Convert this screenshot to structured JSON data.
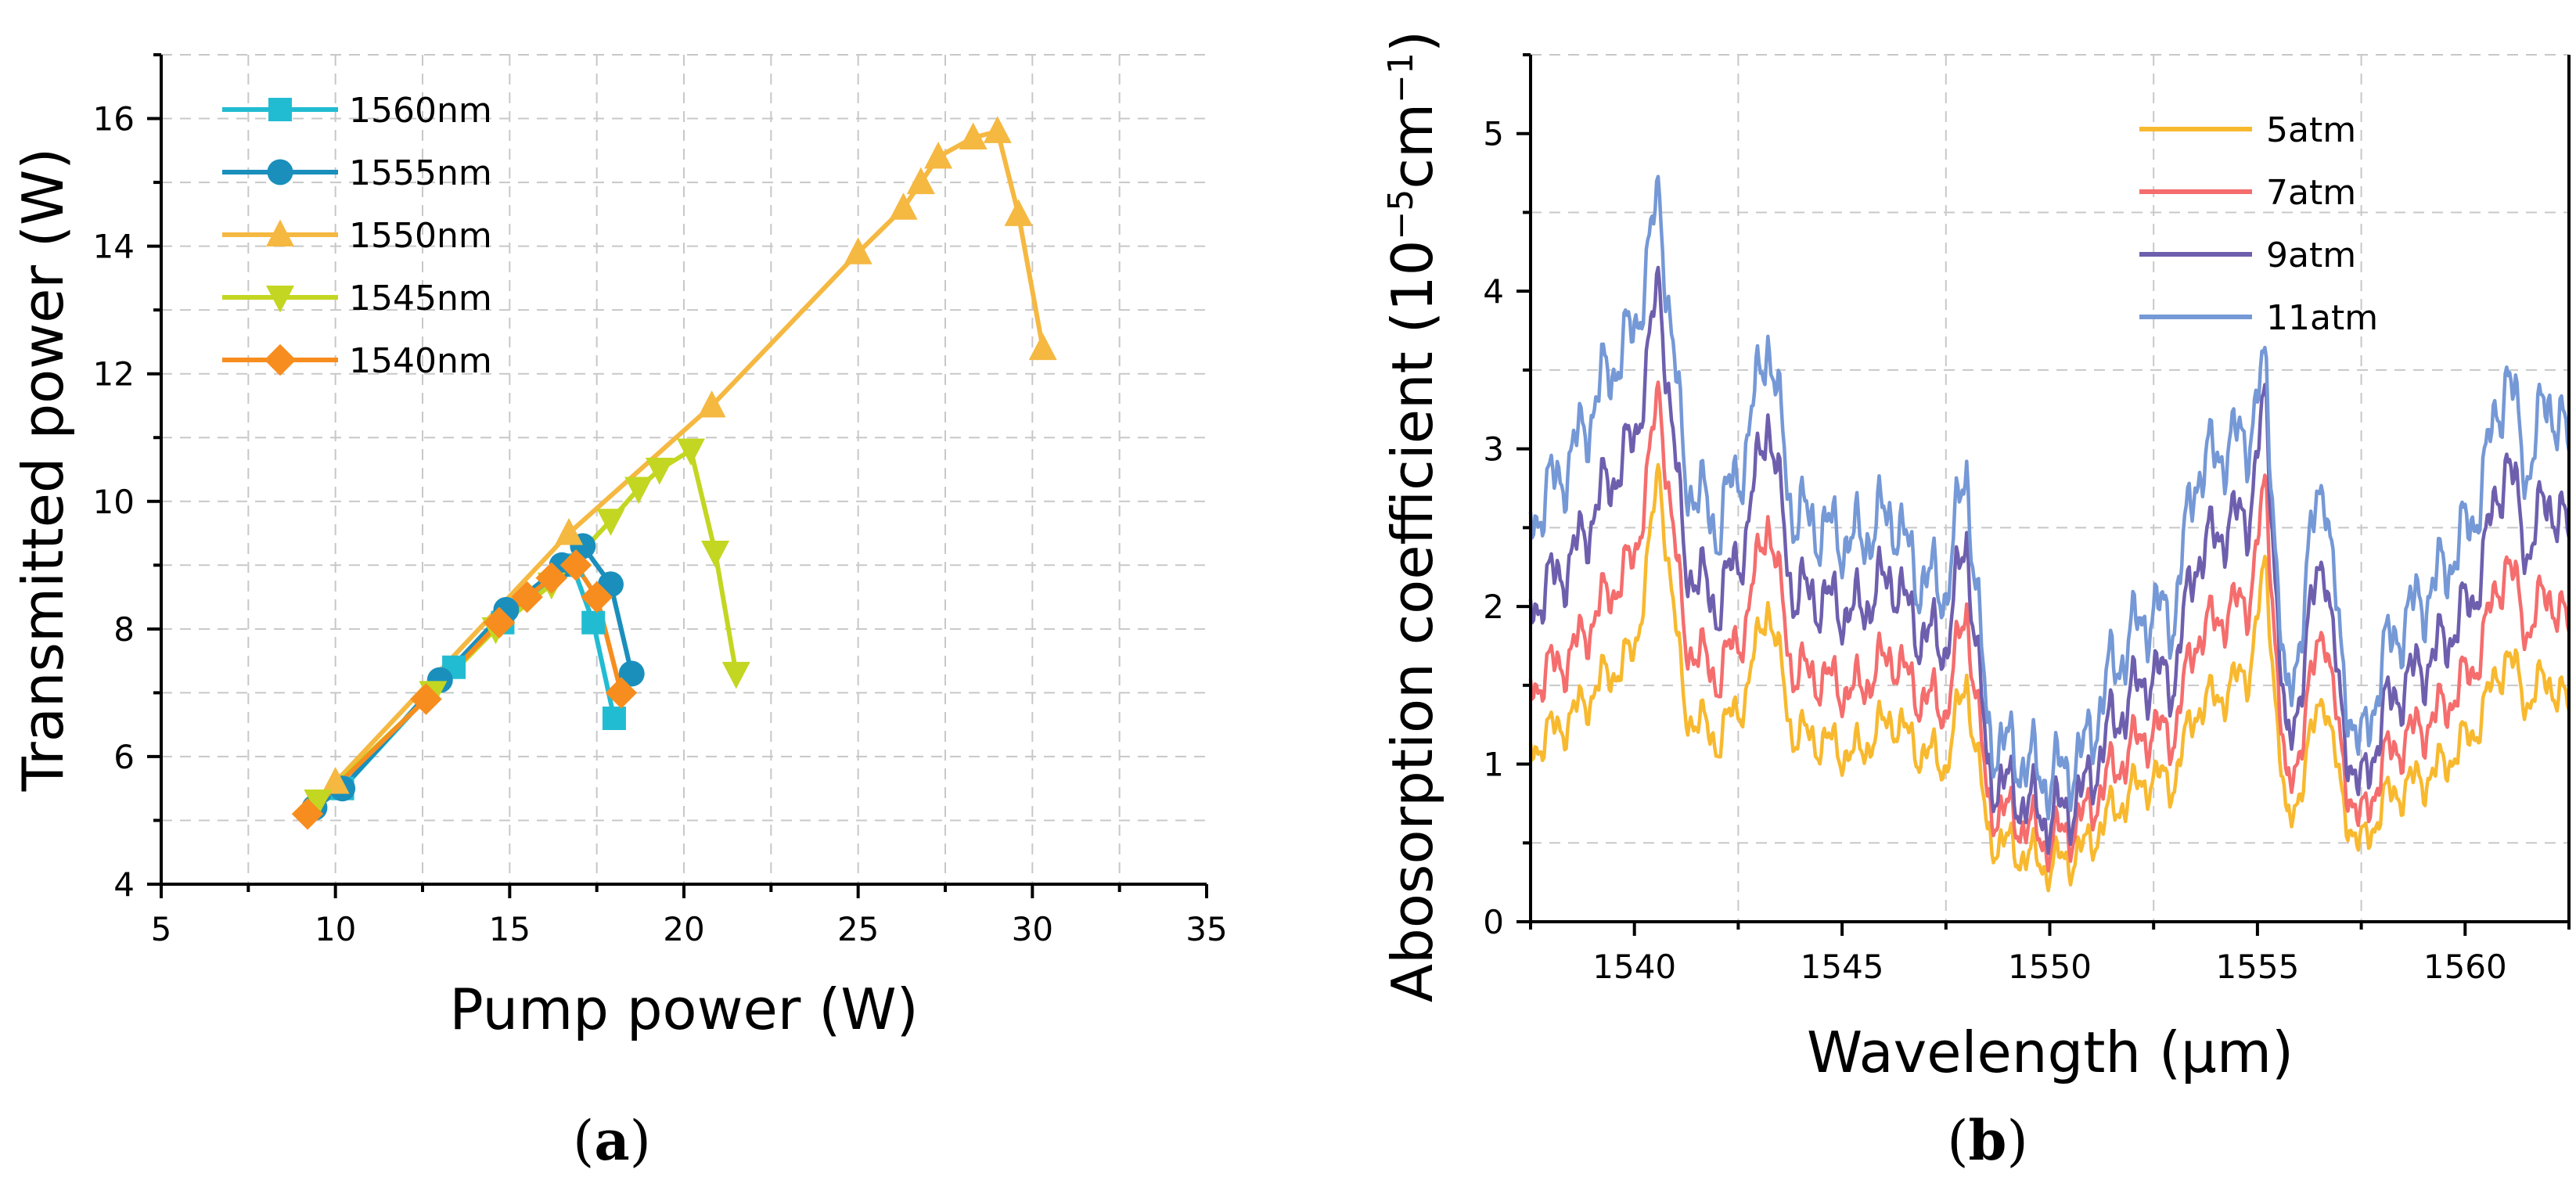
{
  "chart_data": [
    {
      "type": "line",
      "panel_label": "a",
      "xlabel": "Pump power (W)",
      "ylabel": "Transmitted power (W)",
      "xlim": [
        5,
        35
      ],
      "ylim": [
        4,
        17
      ],
      "xticks": [
        5,
        10,
        15,
        20,
        25,
        30,
        35
      ],
      "yticks": [
        4,
        6,
        8,
        10,
        12,
        14,
        16
      ],
      "grid": true,
      "legend_position": "top-left",
      "series": [
        {
          "name": "1560nm",
          "color": "#22bcd2",
          "marker": "square",
          "points": [
            [
              10.2,
              5.5
            ],
            [
              13.4,
              7.4
            ],
            [
              14.8,
              8.1
            ],
            [
              16.8,
              9.0
            ],
            [
              17.4,
              8.1
            ],
            [
              18.0,
              6.6
            ]
          ]
        },
        {
          "name": "1555nm",
          "color": "#1a8fbc",
          "marker": "circle",
          "points": [
            [
              9.4,
              5.2
            ],
            [
              10.2,
              5.5
            ],
            [
              13.0,
              7.2
            ],
            [
              14.9,
              8.3
            ],
            [
              16.5,
              9.0
            ],
            [
              17.1,
              9.3
            ],
            [
              17.9,
              8.7
            ],
            [
              18.5,
              7.3
            ]
          ]
        },
        {
          "name": "1550nm",
          "color": "#f5b841",
          "marker": "triangle-up",
          "points": [
            [
              10.0,
              5.6
            ],
            [
              16.7,
              9.5
            ],
            [
              20.8,
              11.5
            ],
            [
              25.0,
              13.9
            ],
            [
              26.3,
              14.6
            ],
            [
              26.8,
              15.0
            ],
            [
              27.3,
              15.4
            ],
            [
              28.3,
              15.7
            ],
            [
              29.0,
              15.8
            ],
            [
              29.6,
              14.5
            ],
            [
              30.3,
              12.4
            ]
          ]
        },
        {
          "name": "1545nm",
          "color": "#c3d621",
          "marker": "triangle-down",
          "points": [
            [
              9.5,
              5.3
            ],
            [
              12.8,
              7.0
            ],
            [
              14.6,
              8.0
            ],
            [
              16.2,
              8.7
            ],
            [
              17.9,
              9.7
            ],
            [
              18.7,
              10.2
            ],
            [
              19.3,
              10.5
            ],
            [
              20.2,
              10.8
            ],
            [
              20.9,
              9.2
            ],
            [
              21.5,
              7.3
            ]
          ]
        },
        {
          "name": "1540nm",
          "color": "#f78d1e",
          "marker": "diamond",
          "points": [
            [
              9.2,
              5.1
            ],
            [
              12.6,
              6.9
            ],
            [
              14.7,
              8.1
            ],
            [
              15.5,
              8.5
            ],
            [
              16.2,
              8.8
            ],
            [
              16.9,
              9.0
            ],
            [
              17.5,
              8.5
            ],
            [
              18.2,
              7.0
            ]
          ]
        }
      ]
    },
    {
      "type": "line",
      "panel_label": "b",
      "xlabel": "Wavelength (μm)",
      "ylabel": "Abosorption coefficient (10",
      "ylabel_sup1": "−5",
      "ylabel_mid": "cm",
      "ylabel_sup2": "−1",
      "ylabel_end": ")",
      "xlim": [
        1537.5,
        1562.5
      ],
      "ylim": [
        0,
        5.5
      ],
      "xticks": [
        1540,
        1545,
        1550,
        1555,
        1560
      ],
      "yticks": [
        0,
        1,
        2,
        3,
        4,
        5
      ],
      "grid": true,
      "legend_position": "top-right",
      "profile_x": [
        1537.5,
        1538.5,
        1539.3,
        1540.0,
        1540.6,
        1541.2,
        1542.0,
        1542.7,
        1543.2,
        1543.8,
        1544.5,
        1545.3,
        1546.2,
        1546.8,
        1547.5,
        1548.0,
        1548.5,
        1549.2,
        1550.0,
        1550.8,
        1551.5,
        1552.3,
        1553.0,
        1553.5,
        1554.2,
        1554.8,
        1555.2,
        1555.7,
        1556.3,
        1556.6,
        1557.0,
        1557.5,
        1558.0,
        1558.5,
        1559.3,
        1560.2,
        1561.0,
        1561.5,
        1562.0,
        1562.5
      ],
      "series": [
        {
          "name": "5atm",
          "color": "#f8b92f",
          "peak": 2.85,
          "values": [
            1.1,
            1.3,
            1.55,
            1.7,
            2.85,
            1.35,
            1.15,
            1.45,
            2.05,
            1.2,
            1.15,
            1.05,
            1.3,
            1.1,
            1.0,
            1.55,
            0.55,
            0.45,
            0.35,
            0.45,
            0.7,
            0.9,
            0.9,
            1.35,
            1.45,
            1.6,
            2.25,
            0.55,
            1.15,
            1.5,
            0.8,
            0.45,
            0.75,
            0.85,
            0.95,
            1.2,
            1.7,
            1.4,
            1.55,
            1.35
          ]
        },
        {
          "name": "7atm",
          "color": "#f56d6d",
          "peak": 3.35,
          "values": [
            1.5,
            1.7,
            2.05,
            2.3,
            3.35,
            1.8,
            1.55,
            1.9,
            2.6,
            1.6,
            1.55,
            1.45,
            1.7,
            1.45,
            1.35,
            2.0,
            0.75,
            0.65,
            0.5,
            0.65,
            0.95,
            1.2,
            1.2,
            1.8,
            1.95,
            2.05,
            2.75,
            0.75,
            1.5,
            1.95,
            1.05,
            0.6,
            1.0,
            1.15,
            1.3,
            1.6,
            2.3,
            1.85,
            2.1,
            1.85
          ]
        },
        {
          "name": "9atm",
          "color": "#6e5fae",
          "peak": 4.05,
          "values": [
            2.0,
            2.3,
            2.75,
            3.05,
            4.05,
            2.3,
            2.0,
            2.45,
            3.25,
            2.1,
            2.05,
            1.95,
            2.2,
            1.85,
            1.75,
            2.45,
            0.95,
            0.8,
            0.65,
            0.8,
            1.25,
            1.55,
            1.55,
            2.3,
            2.5,
            2.6,
            3.3,
            1.0,
            1.95,
            2.4,
            1.3,
            0.8,
            1.3,
            1.5,
            1.7,
            2.05,
            2.95,
            2.35,
            2.7,
            2.45
          ]
        },
        {
          "name": "11atm",
          "color": "#7598d6",
          "peak": 4.6,
          "values": [
            2.55,
            2.95,
            3.45,
            3.75,
            4.6,
            2.85,
            2.5,
            3.0,
            3.75,
            2.6,
            2.5,
            2.4,
            2.6,
            2.2,
            2.1,
            2.9,
            1.2,
            1.05,
            0.9,
            1.05,
            1.6,
            1.95,
            1.95,
            2.85,
            3.0,
            3.1,
            3.5,
            1.25,
            2.4,
            2.9,
            1.65,
            1.05,
            1.65,
            1.9,
            2.15,
            2.55,
            3.5,
            2.85,
            3.35,
            3.0
          ]
        }
      ]
    }
  ]
}
